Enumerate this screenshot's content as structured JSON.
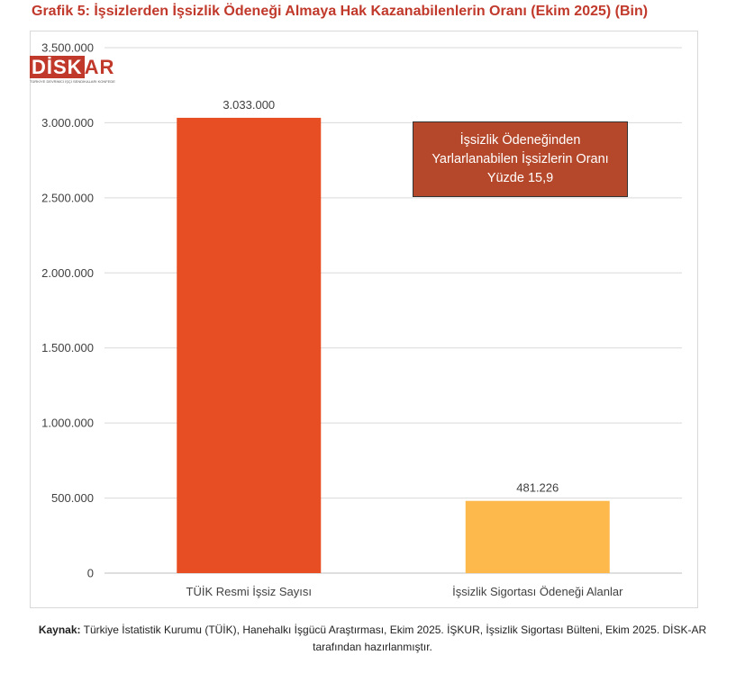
{
  "title": "Grafik 5: İşsizlerden İşsizlik Ödeneği Almaya Hak Kazanabilenlerin Oranı (Ekim 2025) (Bin)",
  "logo": {
    "prefix": "DİSK",
    "suffix": "AR",
    "subtitle": "TÜRKİYE DEVRİMCİ İŞÇİ SENDİKALARI KONFEDERASYONU ARAŞTIRMA MERKEZİ"
  },
  "callout": {
    "line1": "İşsizlik Ödeneğinden",
    "line2": "Yarlarlanabilen İşsizlerin Oranı",
    "line3": "Yüzde 15,9"
  },
  "source": {
    "label": "Kaynak:",
    "line1": " Türkiye İstatistik Kurumu (TÜİK), Hanehalkı İşgücü Araştırması, Ekim 2025. İŞKUR, İşsizlik Sigortası Bülteni, Ekim 2025. DİSK-AR",
    "line2": "tarafından hazırlanmıştır."
  },
  "colors": {
    "bar1": "#e84e23",
    "bar2": "#fdb94b",
    "grid": "#d9d9d9",
    "title": "#c0392b"
  },
  "chart_data": {
    "type": "bar",
    "title": "Grafik 5: İşsizlerden İşsizlik Ödeneği Almaya Hak Kazanabilenlerin Oranı (Ekim 2025) (Bin)",
    "categories": [
      "TÜİK Resmi İşsiz Sayısı",
      "İşsizlik Sigortası Ödeneği Alanlar"
    ],
    "values": [
      3033000,
      481226
    ],
    "data_labels": [
      "3.033.000",
      "481.226"
    ],
    "yticks": [
      0,
      500000,
      1000000,
      1500000,
      2000000,
      2500000,
      3000000,
      3500000
    ],
    "ytick_labels": [
      "0",
      "500.000",
      "1.000.000",
      "1.500.000",
      "2.000.000",
      "2.500.000",
      "3.000.000",
      "3.500.000"
    ],
    "ylim": [
      0,
      3500000
    ],
    "xlabel": "",
    "ylabel": "",
    "grid": true
  }
}
